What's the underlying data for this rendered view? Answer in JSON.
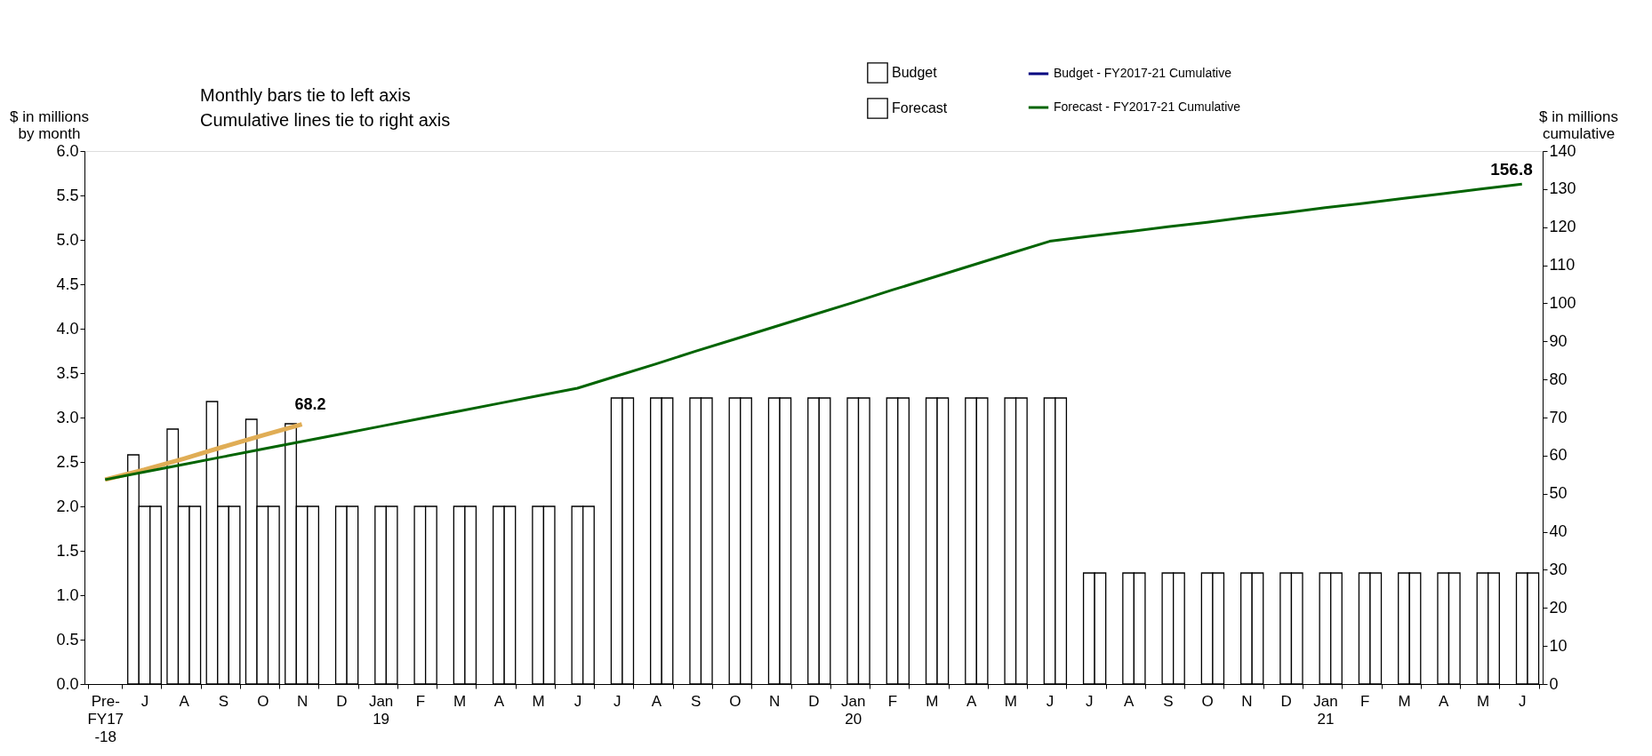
{
  "chart_data": {
    "type": "bar",
    "ylabel": "$ in millions\nby month",
    "y2label": "$ in millions\ncumulative",
    "categories": [
      "Pre-\nFY17\n-18",
      "J",
      "A",
      "S",
      "O",
      "N",
      "D",
      "Jan\n19",
      "F",
      "M",
      "A",
      "M",
      "J",
      "J",
      "A",
      "S",
      "O",
      "N",
      "D",
      "Jan\n20",
      "F",
      "M",
      "A",
      "M",
      "J",
      "J",
      "A",
      "S",
      "O",
      "N",
      "D",
      "Jan\n21",
      "F",
      "M",
      "A",
      "M",
      "J"
    ],
    "series": [
      {
        "color": "#ffffff",
        "values": [
          null,
          2.58,
          2.87,
          3.18,
          2.98,
          2.93,
          null,
          null,
          null,
          null,
          null,
          null,
          null,
          null,
          null,
          null,
          null,
          null,
          null,
          null,
          null,
          null,
          null,
          null,
          null,
          null,
          null,
          null,
          null,
          null,
          null,
          null,
          null,
          null,
          null,
          null,
          null
        ]
      },
      {
        "name": "Budget",
        "color": "#ffffff",
        "values": [
          null,
          2.0,
          2.0,
          2.0,
          2.0,
          2.0,
          2.0,
          2.0,
          2.0,
          2.0,
          2.0,
          2.0,
          2.0,
          3.22,
          3.22,
          3.22,
          3.22,
          3.22,
          3.22,
          3.22,
          3.22,
          3.22,
          3.22,
          3.22,
          3.22,
          1.25,
          1.25,
          1.25,
          1.25,
          1.25,
          1.25,
          1.25,
          1.25,
          1.25,
          1.25,
          1.25,
          1.25
        ]
      },
      {
        "name": "Forecast",
        "color": "#ffffff",
        "values": [
          null,
          2.0,
          2.0,
          2.0,
          2.0,
          2.0,
          2.0,
          2.0,
          2.0,
          2.0,
          2.0,
          2.0,
          2.0,
          3.22,
          3.22,
          3.22,
          3.22,
          3.22,
          3.22,
          3.22,
          3.22,
          3.22,
          3.22,
          3.22,
          3.22,
          1.25,
          1.25,
          1.25,
          1.25,
          1.25,
          1.25,
          1.25,
          1.25,
          1.25,
          1.25,
          1.25,
          1.25
        ]
      },
      {
        "type": "line",
        "axis": "y2",
        "color": "#e0ad55",
        "values": [
          53.7,
          56.3,
          59.2,
          62.3,
          65.3,
          68.2,
          null,
          null,
          null,
          null,
          null,
          null,
          null,
          null,
          null,
          null,
          null,
          null,
          null,
          null,
          null,
          null,
          null,
          null,
          null,
          null,
          null,
          null,
          null,
          null,
          null,
          null,
          null,
          null,
          null,
          null,
          null
        ],
        "value_labels": [
          null,
          null,
          null,
          null,
          null,
          "68.2",
          null,
          null,
          null,
          null,
          null,
          null,
          null,
          null,
          null,
          null,
          null,
          null,
          null,
          null,
          null,
          null,
          null,
          null,
          null,
          null,
          null,
          null,
          null,
          null,
          null,
          null,
          null,
          null,
          null,
          null,
          null
        ]
      },
      {
        "type": "line",
        "axis": "y2",
        "name": "Budget - FY2017-21 Cumulative",
        "color": "#000080",
        "values": [
          null,
          null,
          null,
          null,
          null,
          null,
          null,
          null,
          null,
          null,
          null,
          null,
          null,
          null,
          null,
          null,
          null,
          null,
          null,
          null,
          null,
          null,
          null,
          null,
          null,
          null,
          null,
          null,
          null,
          null,
          null,
          null,
          null,
          null,
          null,
          null,
          null
        ]
      },
      {
        "type": "line",
        "axis": "y2",
        "name": "Forecast - FY2017-21 Cumulative",
        "color": "#006400",
        "values": [
          53.7,
          55.7,
          57.7,
          59.7,
          61.7,
          63.7,
          65.7,
          67.7,
          69.7,
          71.7,
          73.7,
          75.7,
          77.7,
          80.9,
          84.1,
          87.4,
          90.6,
          93.8,
          97.0,
          100.2,
          103.5,
          106.7,
          109.9,
          113.1,
          116.3,
          117.6,
          118.8,
          120.1,
          121.3,
          122.6,
          123.8,
          125.1,
          126.3,
          127.6,
          128.8,
          130.1,
          131.3
        ]
      }
    ],
    "ylim": [
      0,
      6
    ],
    "yticks": [
      {
        "value": 0,
        "label": "0.0"
      },
      0.5,
      {
        "value": 1,
        "label": "1.0"
      },
      1.5,
      {
        "value": 2,
        "label": "2.0"
      },
      2.5,
      {
        "value": 3,
        "label": "3.0"
      },
      3.5,
      {
        "value": 4,
        "label": "4.0"
      },
      4.5,
      {
        "value": 5,
        "label": "5.0"
      },
      5.5,
      {
        "value": 6,
        "label": "6.0"
      }
    ],
    "y2lim": [
      0,
      140
    ],
    "y2ticks": [
      0,
      10,
      20,
      30,
      40,
      50,
      60,
      70,
      80,
      90,
      100,
      110,
      120,
      130,
      140
    ],
    "annotations": [
      "Monthly bars tie to left axis\nCumulative lines tie to right axis",
      "156.8"
    ],
    "legend": "top",
    "grid": false,
    "marker": "none"
  }
}
